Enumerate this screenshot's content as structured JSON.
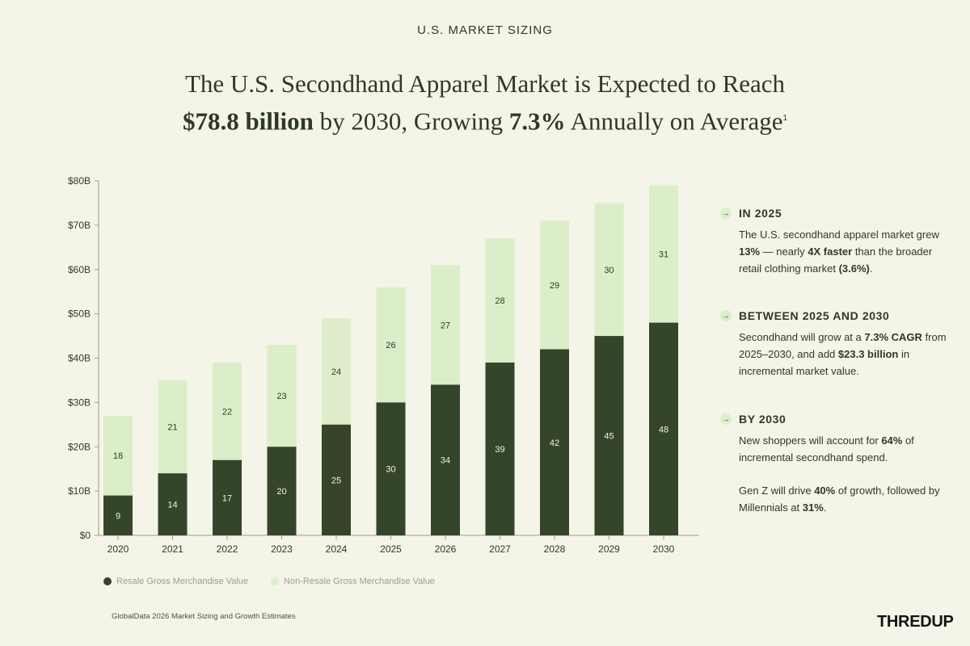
{
  "header": {
    "eyebrow": "U.S. MARKET SIZING",
    "line1": "The U.S. Secondhand Apparel Market is Expected to Reach",
    "line2_bold1": "$78.8 billion",
    "line2_mid": " by 2030, Growing ",
    "line2_bold2": "7.3%",
    "line2_end": " Annually on Average",
    "footnote": "1"
  },
  "colors": {
    "background": "#f4f4e8",
    "resale": "#35452a",
    "non_resale": "#dceec9",
    "text": "#2f3a24"
  },
  "chart_data": {
    "type": "bar",
    "stacked": true,
    "categories": [
      "2020",
      "2021",
      "2022",
      "2023",
      "2024",
      "2025",
      "2026",
      "2027",
      "2028",
      "2029",
      "2030"
    ],
    "series": [
      {
        "name": "Resale Gross Merchandise Value",
        "values": [
          9,
          14,
          17,
          20,
          25,
          30,
          34,
          39,
          42,
          45,
          48
        ]
      },
      {
        "name": "Non-Resale Gross Merchandise Value",
        "values": [
          18,
          21,
          22,
          23,
          24,
          26,
          27,
          28,
          29,
          30,
          31
        ]
      }
    ],
    "yticks": [
      "$0",
      "$10B",
      "$20B",
      "$30B",
      "$40B",
      "$50B",
      "$60B",
      "$70B",
      "$80B"
    ],
    "ylim": [
      0,
      80
    ],
    "grid": false,
    "legend": "bottom-left"
  },
  "sidebar": {
    "s1": {
      "title": "IN 2025",
      "t1": "The U.S. secondhand apparel market grew ",
      "b1": "13%",
      "t2": " — nearly ",
      "b2": "4X faster",
      "t3": " than the broader retail clothing market ",
      "b3": "(3.6%)",
      "t4": "."
    },
    "s2": {
      "title": "BETWEEN 2025 AND 2030",
      "t1": "Secondhand will grow at a ",
      "b1": "7.3% CAGR",
      "t2": " from 2025–2030, and add ",
      "b2": "$23.3 billion",
      "t3": " in incremental market value."
    },
    "s3": {
      "title": "BY 2030",
      "p1_t1": "New shoppers will account for ",
      "p1_b1": "64%",
      "p1_t2": " of incremental secondhand spend.",
      "p2_t1": "Gen Z will drive ",
      "p2_b1": "40%",
      "p2_t2": " of growth, followed by Millennials at ",
      "p2_b2": "31%",
      "p2_t3": "."
    }
  },
  "legend": {
    "resale": "Resale Gross Merchandise Value",
    "non_resale": "Non-Resale Gross Merchandise Value"
  },
  "source": "GlobalData 2026 Market Sizing and Growth Estimates",
  "logo": "THREDUP"
}
